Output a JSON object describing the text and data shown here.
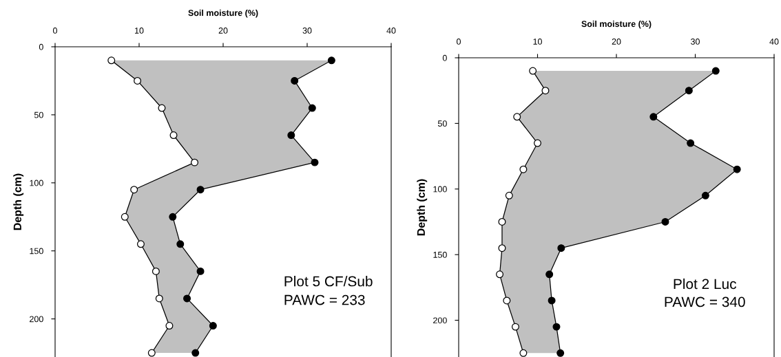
{
  "chart_data": [
    {
      "type": "line",
      "orientation": "horizontal",
      "xlabel": "Soil moisture (%)",
      "ylabel": "Depth (cm)",
      "marker": "circle",
      "grid": false,
      "x": [
        10,
        25,
        45,
        65,
        85,
        105,
        125,
        145,
        165,
        185,
        205,
        225
      ],
      "series": [
        {
          "color": "#ffffff",
          "values": [
            6.7,
            9.8,
            12.7,
            14.1,
            16.6,
            9.4,
            8.3,
            10.2,
            12.0,
            12.4,
            13.6,
            11.5
          ]
        },
        {
          "type": "area",
          "color": "#000000",
          "values": [
            32.9,
            28.5,
            30.6,
            28.1,
            30.9,
            17.3,
            14.0,
            14.9,
            17.3,
            15.7,
            18.8,
            16.7
          ]
        }
      ],
      "xlim": [
        0,
        40
      ],
      "xticks": [
        0,
        10,
        20,
        30,
        40
      ],
      "ylim": [
        228,
        0
      ],
      "yticks": [
        0,
        50,
        100,
        150,
        200
      ],
      "annotations": [
        "Plot 5 CF/Sub",
        "PAWC = 233"
      ]
    },
    {
      "type": "line",
      "orientation": "horizontal",
      "xlabel": "Soil moisture (%)",
      "ylabel": "Depth (cm)",
      "marker": "circle",
      "grid": false,
      "x": [
        10,
        25,
        45,
        65,
        85,
        105,
        125,
        145,
        165,
        185,
        205,
        225
      ],
      "series": [
        {
          "color": "#ffffff",
          "values": [
            9.4,
            11.0,
            7.4,
            10.0,
            8.2,
            6.4,
            5.5,
            5.5,
            5.2,
            6.1,
            7.2,
            8.2
          ]
        },
        {
          "type": "area",
          "color": "#000000",
          "values": [
            32.6,
            29.2,
            24.7,
            29.4,
            35.3,
            31.3,
            26.2,
            13.0,
            11.5,
            11.8,
            12.4,
            12.9
          ]
        }
      ],
      "xlim": [
        0,
        40
      ],
      "xticks": [
        0,
        10,
        20,
        30,
        40
      ],
      "ylim": [
        228,
        0
      ],
      "yticks": [
        0,
        50,
        100,
        150,
        200
      ],
      "annotations": [
        "Plot 2 Luc",
        "PAWC = 340"
      ]
    }
  ]
}
